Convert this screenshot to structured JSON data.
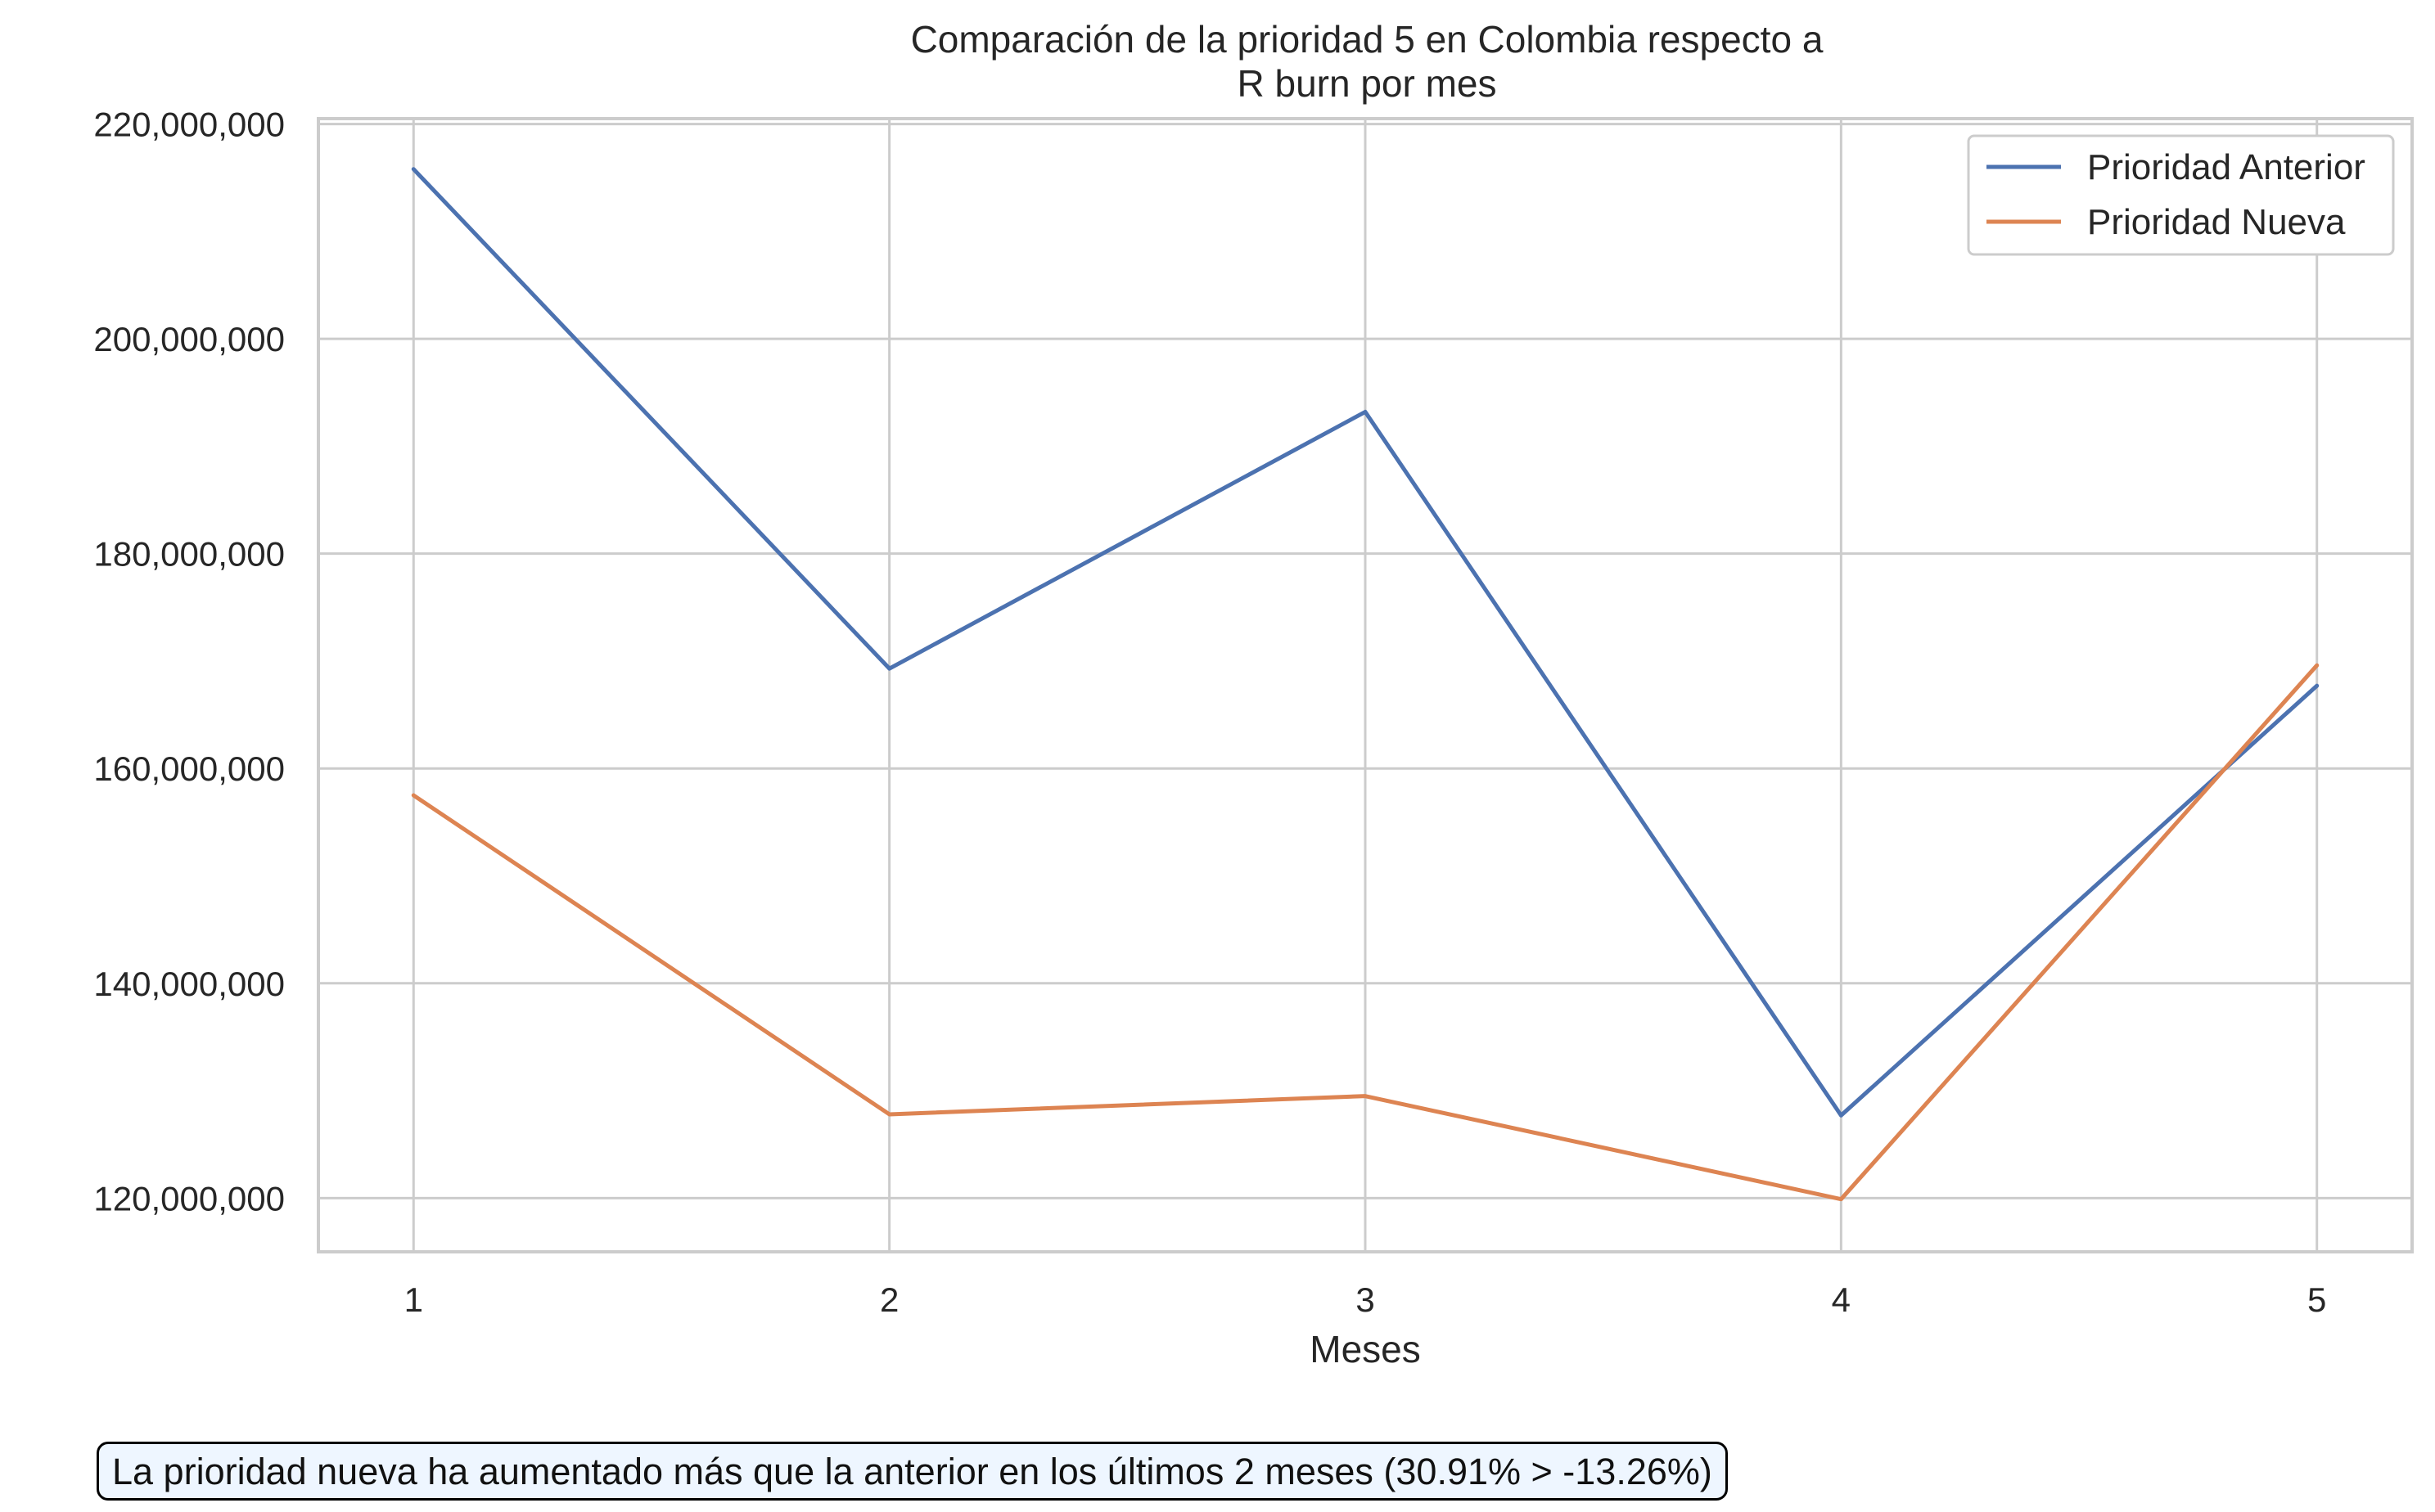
{
  "chart_data": {
    "type": "line",
    "title_lines": [
      "Comparación de la prioridad 5 en Colombia respecto a",
      "R burn por mes"
    ],
    "xlabel": "Meses",
    "ylabel": "",
    "x": [
      1,
      2,
      3,
      4,
      5
    ],
    "x_tick_labels": [
      "1",
      "2",
      "3",
      "4",
      "5"
    ],
    "y_ticks": [
      120000000,
      140000000,
      160000000,
      180000000,
      200000000,
      220000000
    ],
    "y_tick_labels": [
      "120,000,000",
      "140,000,000",
      "160,000,000",
      "180,000,000",
      "200,000,000",
      "220,000,000"
    ],
    "xlim": [
      0.8,
      5.2
    ],
    "ylim": [
      115000000,
      220500000
    ],
    "grid": true,
    "legend_position": "top-right",
    "series": [
      {
        "name": "Prioridad Anterior",
        "color": "#4c72b0",
        "values": [
          215800000,
          169300000,
          193200000,
          127700000,
          167700000
        ]
      },
      {
        "name": "Prioridad Nueva",
        "color": "#dd8452",
        "values": [
          157500000,
          127800000,
          129500000,
          119900000,
          169600000
        ]
      }
    ]
  },
  "annotation": {
    "text": "La prioridad nueva ha aumentado más que la anterior en los últimos 2 meses (30.91% > -13.26%)",
    "background": "#eef6ff"
  },
  "colors": {
    "grid": "#cccccc",
    "axes_border": "#cccccc",
    "text": "#262626"
  }
}
